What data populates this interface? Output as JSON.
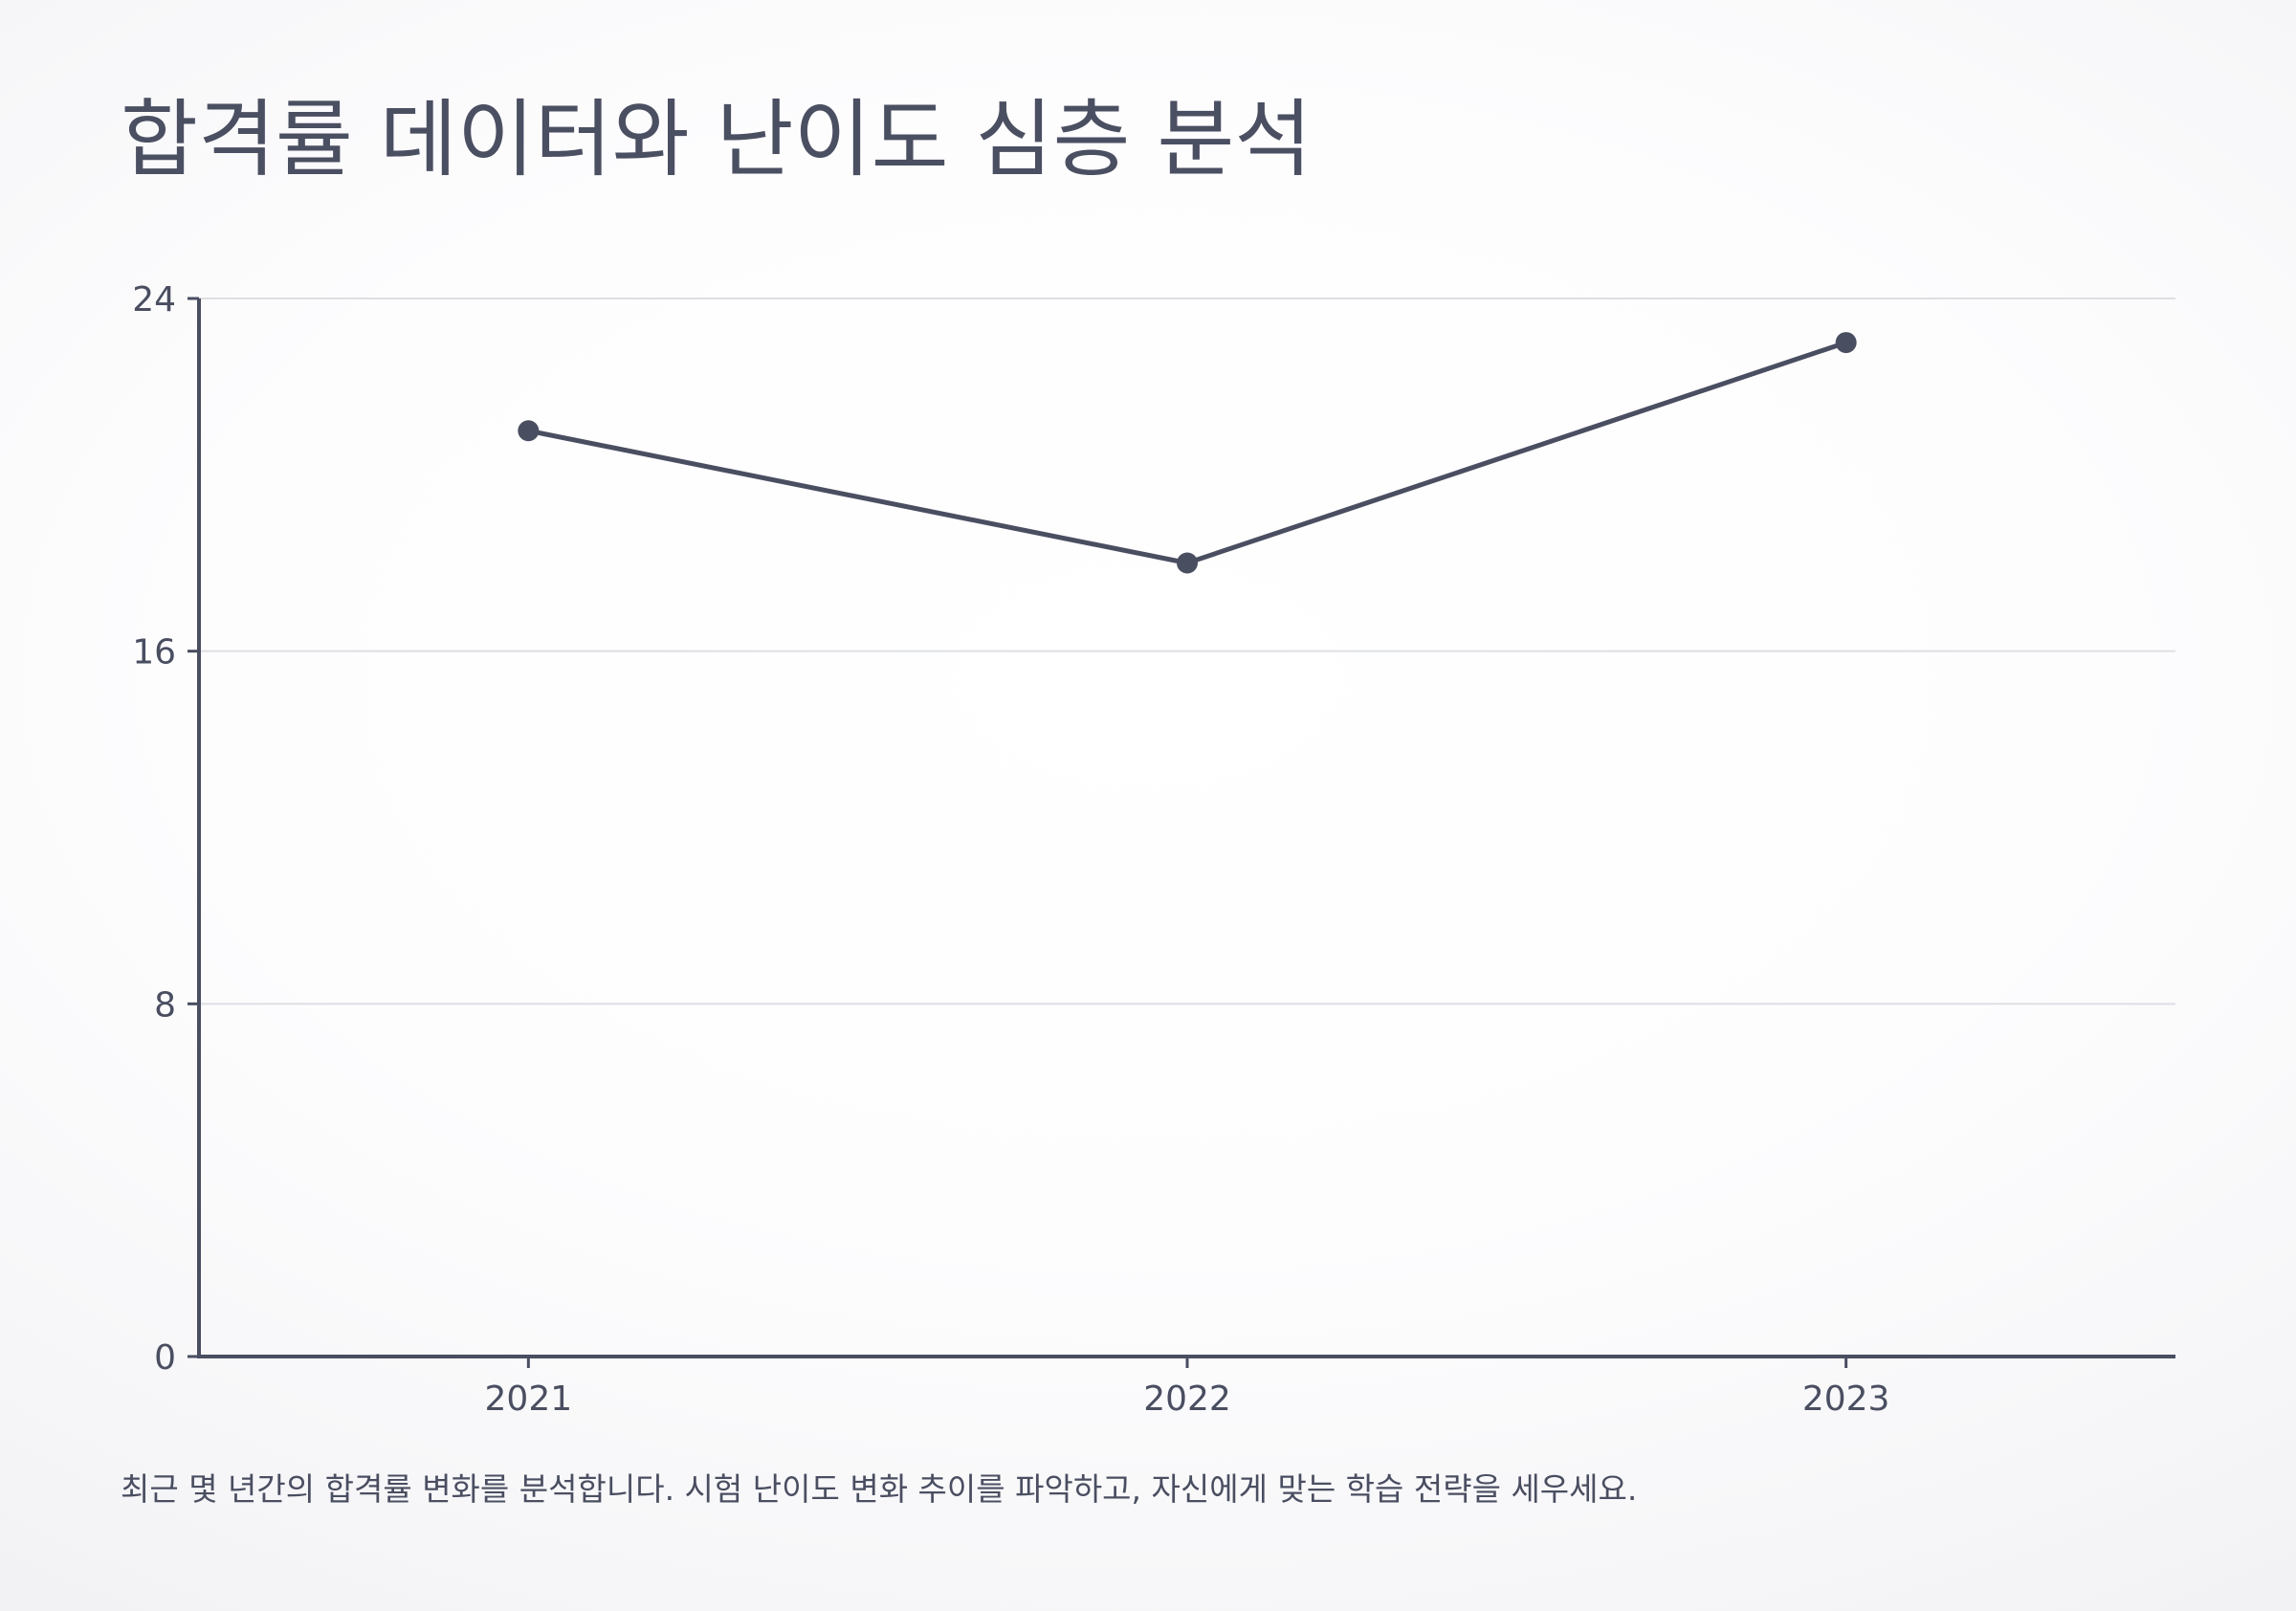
{
  "title": "합격률 데이터와 난이도 심층 분석",
  "caption": "최근 몇 년간의 합격률 변화를 분석합니다. 시험 난이도 변화 추이를 파악하고, 자신에게 맞는 학습 전략을 세우세요.",
  "colors": {
    "line": "#4a4e61",
    "grid": "#dedfe3",
    "axis": "#4a4e61",
    "text": "#4a4e61"
  },
  "chart_data": {
    "type": "line",
    "categories": [
      "2021",
      "2022",
      "2023"
    ],
    "series": [
      {
        "values": [
          21,
          18,
          23
        ]
      }
    ],
    "yticks": [
      "0",
      "8",
      "16",
      "24"
    ],
    "ylim": [
      0,
      24
    ],
    "grid": true,
    "markers": true
  }
}
